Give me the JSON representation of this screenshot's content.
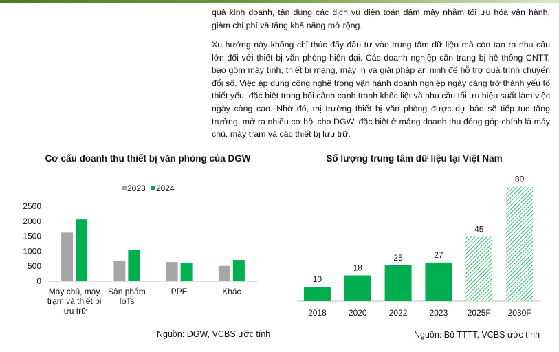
{
  "article": {
    "paragraph_1": "quả kinh doanh, tận dụng các dịch vụ điện toán đám mây nhằm tối ưu hóa vận hành, giảm chi phí và tăng khả năng mở rộng.",
    "paragraph_2": "Xu hướng này không chỉ thúc đẩy đầu tư vào trung tâm dữ liệu mà còn tạo ra nhu cầu lớn đối với thiết bị văn phòng hiện đại. Các doanh nghiệp cần trang bị hệ thống CNTT, bao gồm máy tính, thiết bị mạng, máy in và giải pháp an ninh để hỗ trợ quá trình chuyển đổi số. Việc áp dụng công nghệ trong vận hành doanh nghiệp ngày càng trở thành yếu tố thiết yếu, đặc biệt trong bối cảnh cạnh tranh khốc liệt và nhu cầu tối ưu hiệu suất làm việc ngày càng cao. Nhờ đó, thị trường thiết bị văn phòng được dự báo sẽ tiếp tục tăng trưởng, mở ra nhiều cơ hội cho DGW, đặc biệt ở mảng doanh thu đóng góp chính là máy chủ, máy trạm và các thiết bị lưu trữ."
  },
  "colors": {
    "grey": "#a6a6a6",
    "green": "#00b050",
    "hatch_green": "#00b050"
  },
  "chart_data": [
    {
      "type": "bar",
      "title": "Cơ cấu doanh thu thiết bị văn phòng của DGW",
      "source": "Nguồn: DGW, VCBS ước tính",
      "categories": [
        [
          "Máy chủ, máy",
          "trạm và thiết bị",
          "lưu trữ"
        ],
        [
          "Sản phẩm",
          "IoTs"
        ],
        [
          "PPE"
        ],
        [
          "Khác"
        ]
      ],
      "series": [
        {
          "name": "2023",
          "color": "#a6a6a6",
          "values": [
            1620,
            670,
            640,
            510
          ]
        },
        {
          "name": "2024",
          "color": "#00b050",
          "values": [
            2060,
            1040,
            600,
            710
          ]
        }
      ],
      "yticks": [
        0,
        500,
        1000,
        1500,
        2000,
        2500
      ],
      "ylim": [
        0,
        2500
      ],
      "grid": false,
      "legend": "top"
    },
    {
      "type": "bar",
      "title": "Số lượng trung tâm dữ liệu tại Việt Nam",
      "source": "Nguồn: Bộ TTTT, VCBS ước tính",
      "categories": [
        "2018",
        "2020",
        "2022",
        "2023",
        "2025F",
        "2030F"
      ],
      "values": [
        10,
        18,
        25,
        27,
        45,
        80
      ],
      "forecast": [
        false,
        false,
        false,
        false,
        true,
        true
      ],
      "data_labels": [
        "10",
        "18",
        "25",
        "27",
        "45",
        "80"
      ],
      "grid": false
    }
  ]
}
